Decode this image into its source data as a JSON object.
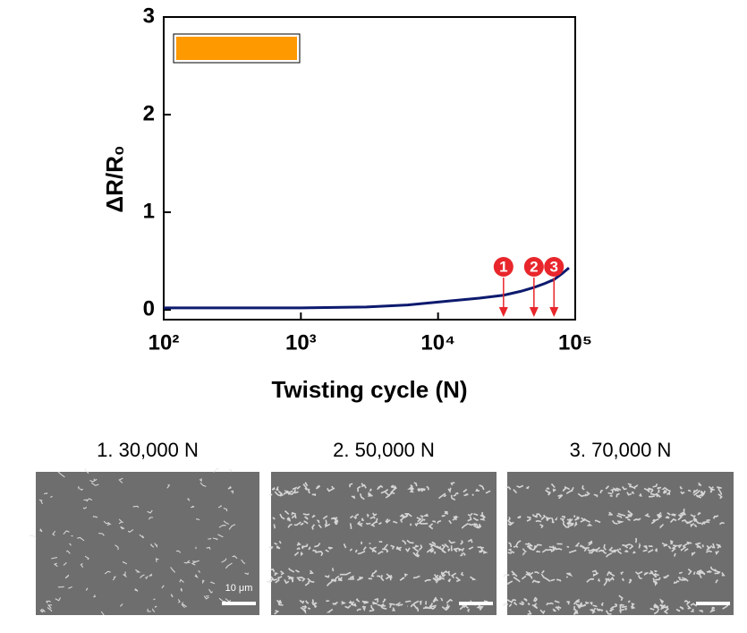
{
  "chart_data": {
    "type": "line",
    "xlabel": "Twisting cycle (N)",
    "ylabel": "ΔR/R₀",
    "x": [
      100,
      300,
      1000,
      3000,
      6000,
      10000,
      20000,
      30000,
      40000,
      50000,
      60000,
      70000,
      80000,
      90000
    ],
    "series": [
      {
        "color": "#0d1a6e",
        "values": [
          0.02,
          0.02,
          0.02,
          0.03,
          0.05,
          0.08,
          0.12,
          0.15,
          0.19,
          0.23,
          0.27,
          0.31,
          0.37,
          0.43
        ]
      }
    ],
    "xlim": [
      100,
      100000
    ],
    "log_x": true,
    "xticks": [
      {
        "value": 100,
        "label": "10²"
      },
      {
        "value": 1000,
        "label": "10³"
      },
      {
        "value": 10000,
        "label": "10⁴"
      },
      {
        "value": 100000,
        "label": "10⁵"
      }
    ],
    "ylim": [
      -0.1,
      3
    ],
    "yticks": [
      0,
      1,
      2,
      3
    ],
    "annotations": [
      {
        "x": 30000,
        "label": "1"
      },
      {
        "x": 50000,
        "label": "2"
      },
      {
        "x": 70000,
        "label": "3"
      }
    ],
    "annotation_color": "#e8262b"
  },
  "panels": [
    {
      "title": "1. 30,000 N",
      "scale_label": "10 μm"
    },
    {
      "title": "2. 50,000 N"
    },
    {
      "title": "3. 70,000 N"
    }
  ]
}
